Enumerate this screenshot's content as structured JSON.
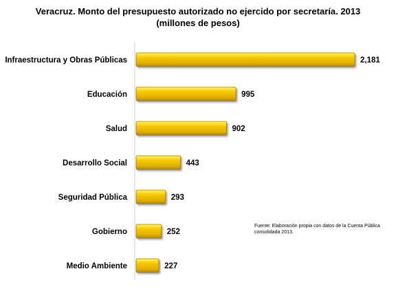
{
  "chart_data": {
    "type": "bar",
    "orientation": "horizontal",
    "title_line1": "Veracruz. Monto del presupuesto autorizado no ejercido por secretaría. 2013",
    "title_line2": "(millones de pesos)",
    "categories": [
      "Infraestructura y Obras Públicas",
      "Educación",
      "Salud",
      "Desarrollo Social",
      "Seguridad Pública",
      "Gobierno",
      "Medio Ambiente"
    ],
    "values": [
      2181,
      995,
      902,
      443,
      293,
      252,
      227
    ],
    "value_labels": [
      "2,181",
      "995",
      "902",
      "443",
      "293",
      "252",
      "227"
    ],
    "xlim": [
      0,
      2181
    ],
    "grid": false,
    "legend": "none",
    "bar_color": "#F2C200",
    "note": "Fuente: Elaboración propia con datos de la Cuenta Pública consolidada 2013."
  }
}
